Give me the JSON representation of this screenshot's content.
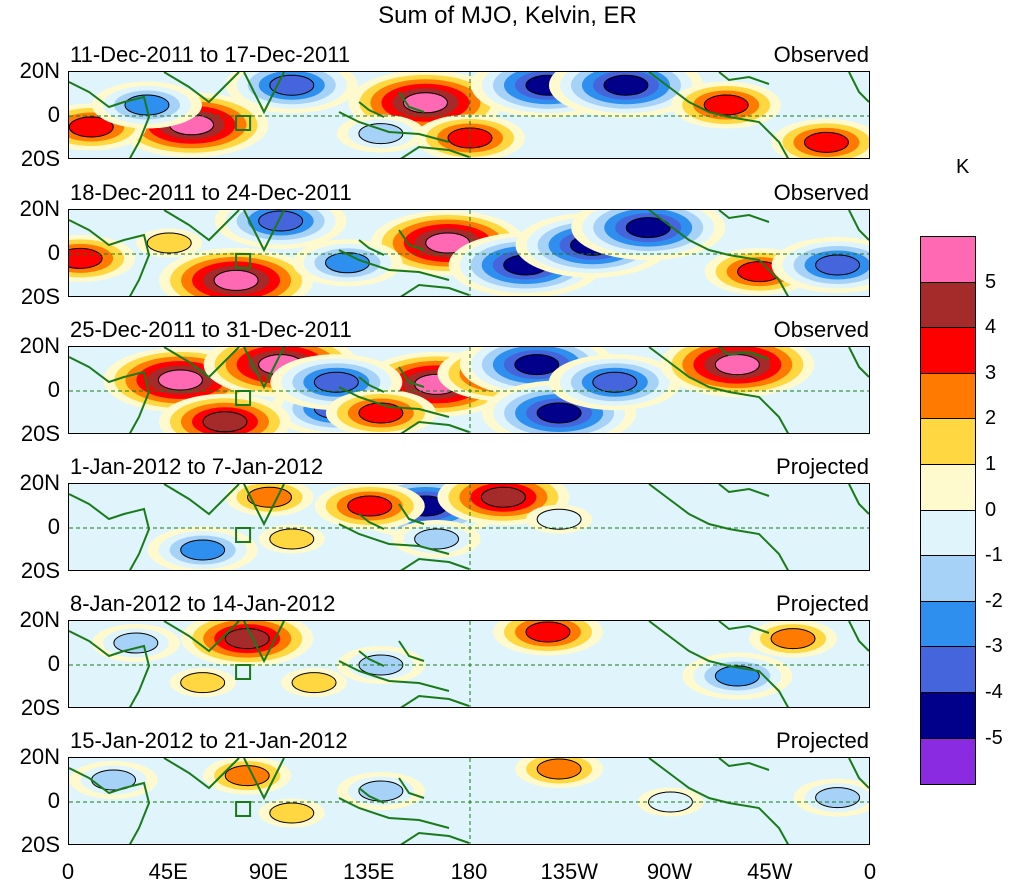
{
  "title": "Sum of MJO, Kelvin, ER",
  "chart_data": {
    "type": "heatmap",
    "title": "Sum of MJO, Kelvin, ER",
    "unit": "K",
    "xlim": [
      0,
      360
    ],
    "ylim": [
      -20,
      20
    ],
    "x_ticks": [
      "0",
      "45E",
      "90E",
      "135E",
      "180",
      "135W",
      "90W",
      "45W",
      "0"
    ],
    "y_ticks": [
      "20N",
      "0",
      "20S"
    ],
    "colorbar": {
      "labels": [
        "5",
        "4",
        "3",
        "2",
        "1",
        "0",
        "-1",
        "-2",
        "-3",
        "-4",
        "-5"
      ],
      "colors": [
        "#ff69b4",
        "#a52a2a",
        "#ff0000",
        "#ff7a00",
        "#ffd740",
        "#fffacd",
        "#dff4fb",
        "#a6d2f7",
        "#2e8fef",
        "#4565dd",
        "#00008b",
        "#8a2be2"
      ]
    },
    "panels": [
      {
        "period": "11-Dec-2011 to 17-Dec-2011",
        "type": "Observed",
        "anomalies": [
          {
            "lon": 55,
            "lat": -4,
            "value": 5
          },
          {
            "lon": 10,
            "lat": -5,
            "value": 3
          },
          {
            "lon": 100,
            "lat": 14,
            "value": -4
          },
          {
            "lon": 150,
            "lat": 8,
            "value": 2
          },
          {
            "lon": 160,
            "lat": 6,
            "value": 5
          },
          {
            "lon": 180,
            "lat": -10,
            "value": 3
          },
          {
            "lon": 215,
            "lat": 14,
            "value": -5
          },
          {
            "lon": 250,
            "lat": 14,
            "value": -5
          },
          {
            "lon": 295,
            "lat": 5,
            "value": 3
          },
          {
            "lon": 35,
            "lat": 5,
            "value": -3
          },
          {
            "lon": 140,
            "lat": -8,
            "value": -2
          },
          {
            "lon": 340,
            "lat": -12,
            "value": 3
          }
        ]
      },
      {
        "period": "18-Dec-2011 to 24-Dec-2011",
        "type": "Observed",
        "anomalies": [
          {
            "lon": 5,
            "lat": -2,
            "value": 3
          },
          {
            "lon": 75,
            "lat": -12,
            "value": 5
          },
          {
            "lon": 95,
            "lat": 15,
            "value": -4
          },
          {
            "lon": 170,
            "lat": 5,
            "value": 5
          },
          {
            "lon": 205,
            "lat": -5,
            "value": -5
          },
          {
            "lon": 235,
            "lat": 4,
            "value": -5
          },
          {
            "lon": 260,
            "lat": 12,
            "value": -5
          },
          {
            "lon": 310,
            "lat": -8,
            "value": 3
          },
          {
            "lon": 345,
            "lat": -5,
            "value": -4
          },
          {
            "lon": 125,
            "lat": -4,
            "value": -3
          },
          {
            "lon": 45,
            "lat": 5,
            "value": 1
          }
        ]
      },
      {
        "period": "25-Dec-2011 to 31-Dec-2011",
        "type": "Observed",
        "anomalies": [
          {
            "lon": 50,
            "lat": 5,
            "value": 5
          },
          {
            "lon": 95,
            "lat": 12,
            "value": 5
          },
          {
            "lon": 165,
            "lat": 3,
            "value": 5
          },
          {
            "lon": 195,
            "lat": 8,
            "value": 4
          },
          {
            "lon": 120,
            "lat": -8,
            "value": -4
          },
          {
            "lon": 120,
            "lat": 4,
            "value": -4
          },
          {
            "lon": 210,
            "lat": 12,
            "value": -5
          },
          {
            "lon": 220,
            "lat": -10,
            "value": -5
          },
          {
            "lon": 245,
            "lat": 4,
            "value": -4
          },
          {
            "lon": 300,
            "lat": 12,
            "value": 5
          },
          {
            "lon": 70,
            "lat": -14,
            "value": 4
          },
          {
            "lon": 140,
            "lat": -10,
            "value": 3
          }
        ]
      },
      {
        "period": "1-Jan-2012 to 7-Jan-2012",
        "type": "Projected",
        "anomalies": [
          {
            "lon": 90,
            "lat": 14,
            "value": 2
          },
          {
            "lon": 160,
            "lat": 10,
            "value": -5
          },
          {
            "lon": 195,
            "lat": 14,
            "value": 4
          },
          {
            "lon": 135,
            "lat": 10,
            "value": 3
          },
          {
            "lon": 60,
            "lat": -10,
            "value": -3
          },
          {
            "lon": 165,
            "lat": -5,
            "value": -2
          },
          {
            "lon": 220,
            "lat": 4,
            "value": -1
          },
          {
            "lon": 100,
            "lat": -5,
            "value": 1
          }
        ]
      },
      {
        "period": "8-Jan-2012 to 14-Jan-2012",
        "type": "Projected",
        "anomalies": [
          {
            "lon": 80,
            "lat": 12,
            "value": 4
          },
          {
            "lon": 215,
            "lat": 15,
            "value": 3
          },
          {
            "lon": 325,
            "lat": 12,
            "value": 2
          },
          {
            "lon": 30,
            "lat": 10,
            "value": -2
          },
          {
            "lon": 140,
            "lat": 0,
            "value": -2
          },
          {
            "lon": 300,
            "lat": -5,
            "value": -3
          },
          {
            "lon": 60,
            "lat": -8,
            "value": 1
          },
          {
            "lon": 110,
            "lat": -8,
            "value": 1
          }
        ]
      },
      {
        "period": "15-Jan-2012 to 21-Jan-2012",
        "type": "Projected",
        "anomalies": [
          {
            "lon": 80,
            "lat": 12,
            "value": 2
          },
          {
            "lon": 220,
            "lat": 15,
            "value": 2
          },
          {
            "lon": 20,
            "lat": 10,
            "value": -2
          },
          {
            "lon": 140,
            "lat": 5,
            "value": -2
          },
          {
            "lon": 345,
            "lat": 2,
            "value": -2
          },
          {
            "lon": 270,
            "lat": 0,
            "value": -1
          },
          {
            "lon": 100,
            "lat": -5,
            "value": 1
          }
        ]
      }
    ]
  }
}
